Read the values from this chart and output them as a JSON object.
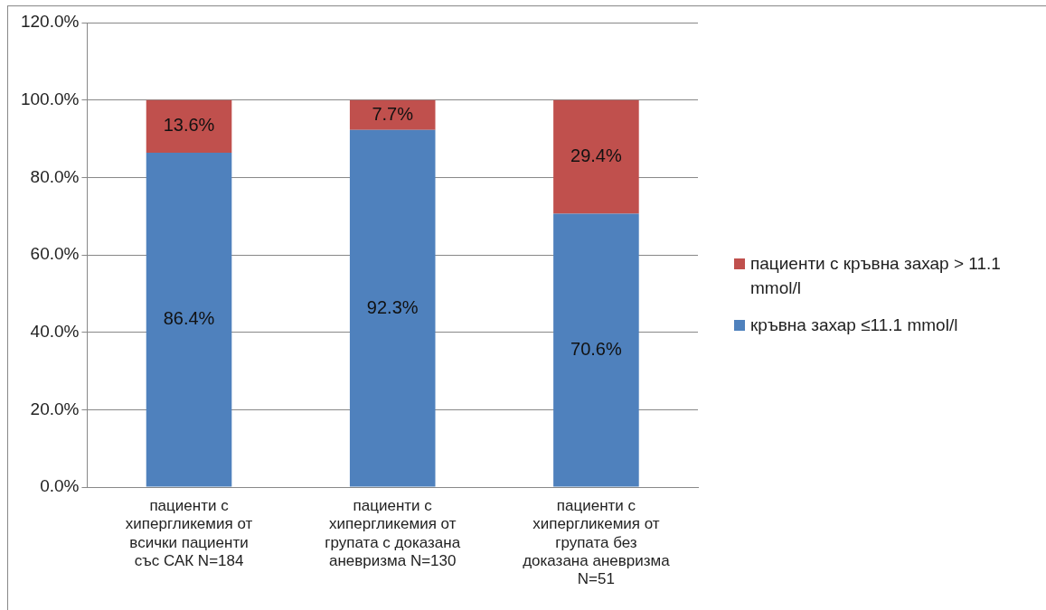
{
  "chart_data": {
    "type": "bar",
    "stacked": true,
    "categories": [
      "пациенти с хипергликемия от всички пациенти със САК N=184",
      "пациенти с хипергликемия от групата с доказана аневризма N=130",
      "пациенти с хипергликемия от групата без доказана аневризма N=51"
    ],
    "series": [
      {
        "name": "кръвна захар ≤11.1 mmol/l",
        "color": "#4f81bd",
        "values": [
          86.4,
          92.3,
          70.6
        ],
        "value_labels": [
          "86.4%",
          "92.3%",
          "70.6%"
        ]
      },
      {
        "name": "пациенти с кръвна захар > 11.1 mmol/l",
        "color": "#c0504d",
        "values": [
          13.6,
          7.7,
          29.4
        ],
        "value_labels": [
          "13.6%",
          "7.7%",
          "29.4%"
        ]
      }
    ],
    "ylim": [
      0,
      120
    ],
    "yticks": [
      {
        "value": 0,
        "label": "0.0%"
      },
      {
        "value": 20,
        "label": "20.0%"
      },
      {
        "value": 40,
        "label": "40.0%"
      },
      {
        "value": 60,
        "label": "60.0%"
      },
      {
        "value": 80,
        "label": "80.0%"
      },
      {
        "value": 100,
        "label": "100.0%"
      },
      {
        "value": 120,
        "label": "120.0%"
      }
    ],
    "grid": "y",
    "legend": "right"
  }
}
